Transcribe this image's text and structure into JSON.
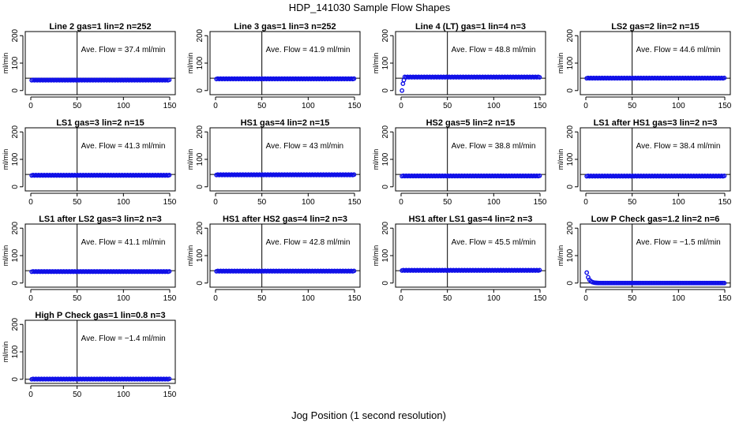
{
  "figure": {
    "main_title": "HDP_141030  Sample Flow Shapes",
    "xlabel": "Jog Position (1 second resolution)",
    "ylabel": "ml/min",
    "annotation_prefix": "Ave. Flow =",
    "annotation_unit": "ml/min",
    "colors": {
      "points": "#1010e8",
      "axes": "#000000",
      "background": "#ffffff"
    }
  },
  "chart_data": [
    {
      "type": "scatter",
      "title": "Line 2 gas=1 lin=2 n=252",
      "ave_flow": "37.4",
      "shape": "flat",
      "level": 37.4,
      "xlim": [
        0,
        150
      ],
      "ylim": [
        -15,
        215
      ],
      "xticks": [
        0,
        50,
        100,
        150
      ],
      "yticks": [
        0,
        100,
        200
      ],
      "hline": 45,
      "vline": 50
    },
    {
      "type": "scatter",
      "title": "Line 3 gas=1 lin=3 n=252",
      "ave_flow": "41.9",
      "shape": "flat",
      "level": 41.9,
      "xlim": [
        0,
        150
      ],
      "ylim": [
        -15,
        215
      ],
      "xticks": [
        0,
        50,
        100,
        150
      ],
      "yticks": [
        0,
        100,
        200
      ],
      "hline": 45,
      "vline": 50
    },
    {
      "type": "scatter",
      "title": "Line 4 (LT) gas=1 lin=4 n=3",
      "ave_flow": "48.8",
      "shape": "startup_low",
      "level": 48.8,
      "xlim": [
        0,
        150
      ],
      "ylim": [
        -15,
        215
      ],
      "xticks": [
        0,
        50,
        100,
        150
      ],
      "yticks": [
        0,
        100,
        200
      ],
      "hline": 45,
      "vline": 50
    },
    {
      "type": "scatter",
      "title": "LS2 gas=2 lin=2 n=15",
      "ave_flow": "44.6",
      "shape": "flat",
      "level": 44.6,
      "xlim": [
        0,
        150
      ],
      "ylim": [
        -15,
        215
      ],
      "xticks": [
        0,
        50,
        100,
        150
      ],
      "yticks": [
        0,
        100,
        200
      ],
      "hline": 45,
      "vline": 50
    },
    {
      "type": "scatter",
      "title": "LS1 gas=3 lin=2 n=15",
      "ave_flow": "41.3",
      "shape": "flat",
      "level": 41.3,
      "xlim": [
        0,
        150
      ],
      "ylim": [
        -15,
        215
      ],
      "xticks": [
        0,
        50,
        100,
        150
      ],
      "yticks": [
        0,
        100,
        200
      ],
      "hline": 45,
      "vline": 50
    },
    {
      "type": "scatter",
      "title": "HS1 gas=4 lin=2 n=15",
      "ave_flow": "43",
      "shape": "flat",
      "level": 43,
      "xlim": [
        0,
        150
      ],
      "ylim": [
        -15,
        215
      ],
      "xticks": [
        0,
        50,
        100,
        150
      ],
      "yticks": [
        0,
        100,
        200
      ],
      "hline": 45,
      "vline": 50
    },
    {
      "type": "scatter",
      "title": "HS2 gas=5 lin=2 n=15",
      "ave_flow": "38.8",
      "shape": "flat",
      "level": 38.8,
      "xlim": [
        0,
        150
      ],
      "ylim": [
        -15,
        215
      ],
      "xticks": [
        0,
        50,
        100,
        150
      ],
      "yticks": [
        0,
        100,
        200
      ],
      "hline": 45,
      "vline": 50
    },
    {
      "type": "scatter",
      "title": "LS1 after HS1 gas=3 lin=2 n=3",
      "ave_flow": "38.4",
      "shape": "flat",
      "level": 38.4,
      "xlim": [
        0,
        150
      ],
      "ylim": [
        -15,
        215
      ],
      "xticks": [
        0,
        50,
        100,
        150
      ],
      "yticks": [
        0,
        100,
        200
      ],
      "hline": 45,
      "vline": 50
    },
    {
      "type": "scatter",
      "title": "LS1 after LS2 gas=3 lin=2 n=3",
      "ave_flow": "41.1",
      "shape": "flat",
      "level": 41.1,
      "xlim": [
        0,
        150
      ],
      "ylim": [
        -15,
        215
      ],
      "xticks": [
        0,
        50,
        100,
        150
      ],
      "yticks": [
        0,
        100,
        200
      ],
      "hline": 45,
      "vline": 50
    },
    {
      "type": "scatter",
      "title": "HS1 after HS2 gas=4 lin=2 n=3",
      "ave_flow": "42.8",
      "shape": "flat",
      "level": 42.8,
      "xlim": [
        0,
        150
      ],
      "ylim": [
        -15,
        215
      ],
      "xticks": [
        0,
        50,
        100,
        150
      ],
      "yticks": [
        0,
        100,
        200
      ],
      "hline": 45,
      "vline": 50
    },
    {
      "type": "scatter",
      "title": "HS1 after LS1 gas=4 lin=2 n=3",
      "ave_flow": "45.5",
      "shape": "flat",
      "level": 45.5,
      "xlim": [
        0,
        150
      ],
      "ylim": [
        -15,
        215
      ],
      "xticks": [
        0,
        50,
        100,
        150
      ],
      "yticks": [
        0,
        100,
        200
      ],
      "hline": 45,
      "vline": 50
    },
    {
      "type": "scatter",
      "title": "Low P Check gas=1.2 lin=2 n=6",
      "ave_flow": "−1.5",
      "shape": "decay",
      "level": 0,
      "xlim": [
        0,
        150
      ],
      "ylim": [
        -15,
        215
      ],
      "xticks": [
        0,
        50,
        100,
        150
      ],
      "yticks": [
        0,
        100,
        200
      ],
      "hline": 0,
      "vline": 50
    },
    {
      "type": "scatter",
      "title": "High P Check gas=1 lin=0.8 n=3",
      "ave_flow": "−1.4",
      "shape": "flat",
      "level": 0,
      "xlim": [
        0,
        150
      ],
      "ylim": [
        -15,
        215
      ],
      "xticks": [
        0,
        50,
        100,
        150
      ],
      "yticks": [
        0,
        100,
        200
      ],
      "hline": 0,
      "vline": 50
    }
  ]
}
